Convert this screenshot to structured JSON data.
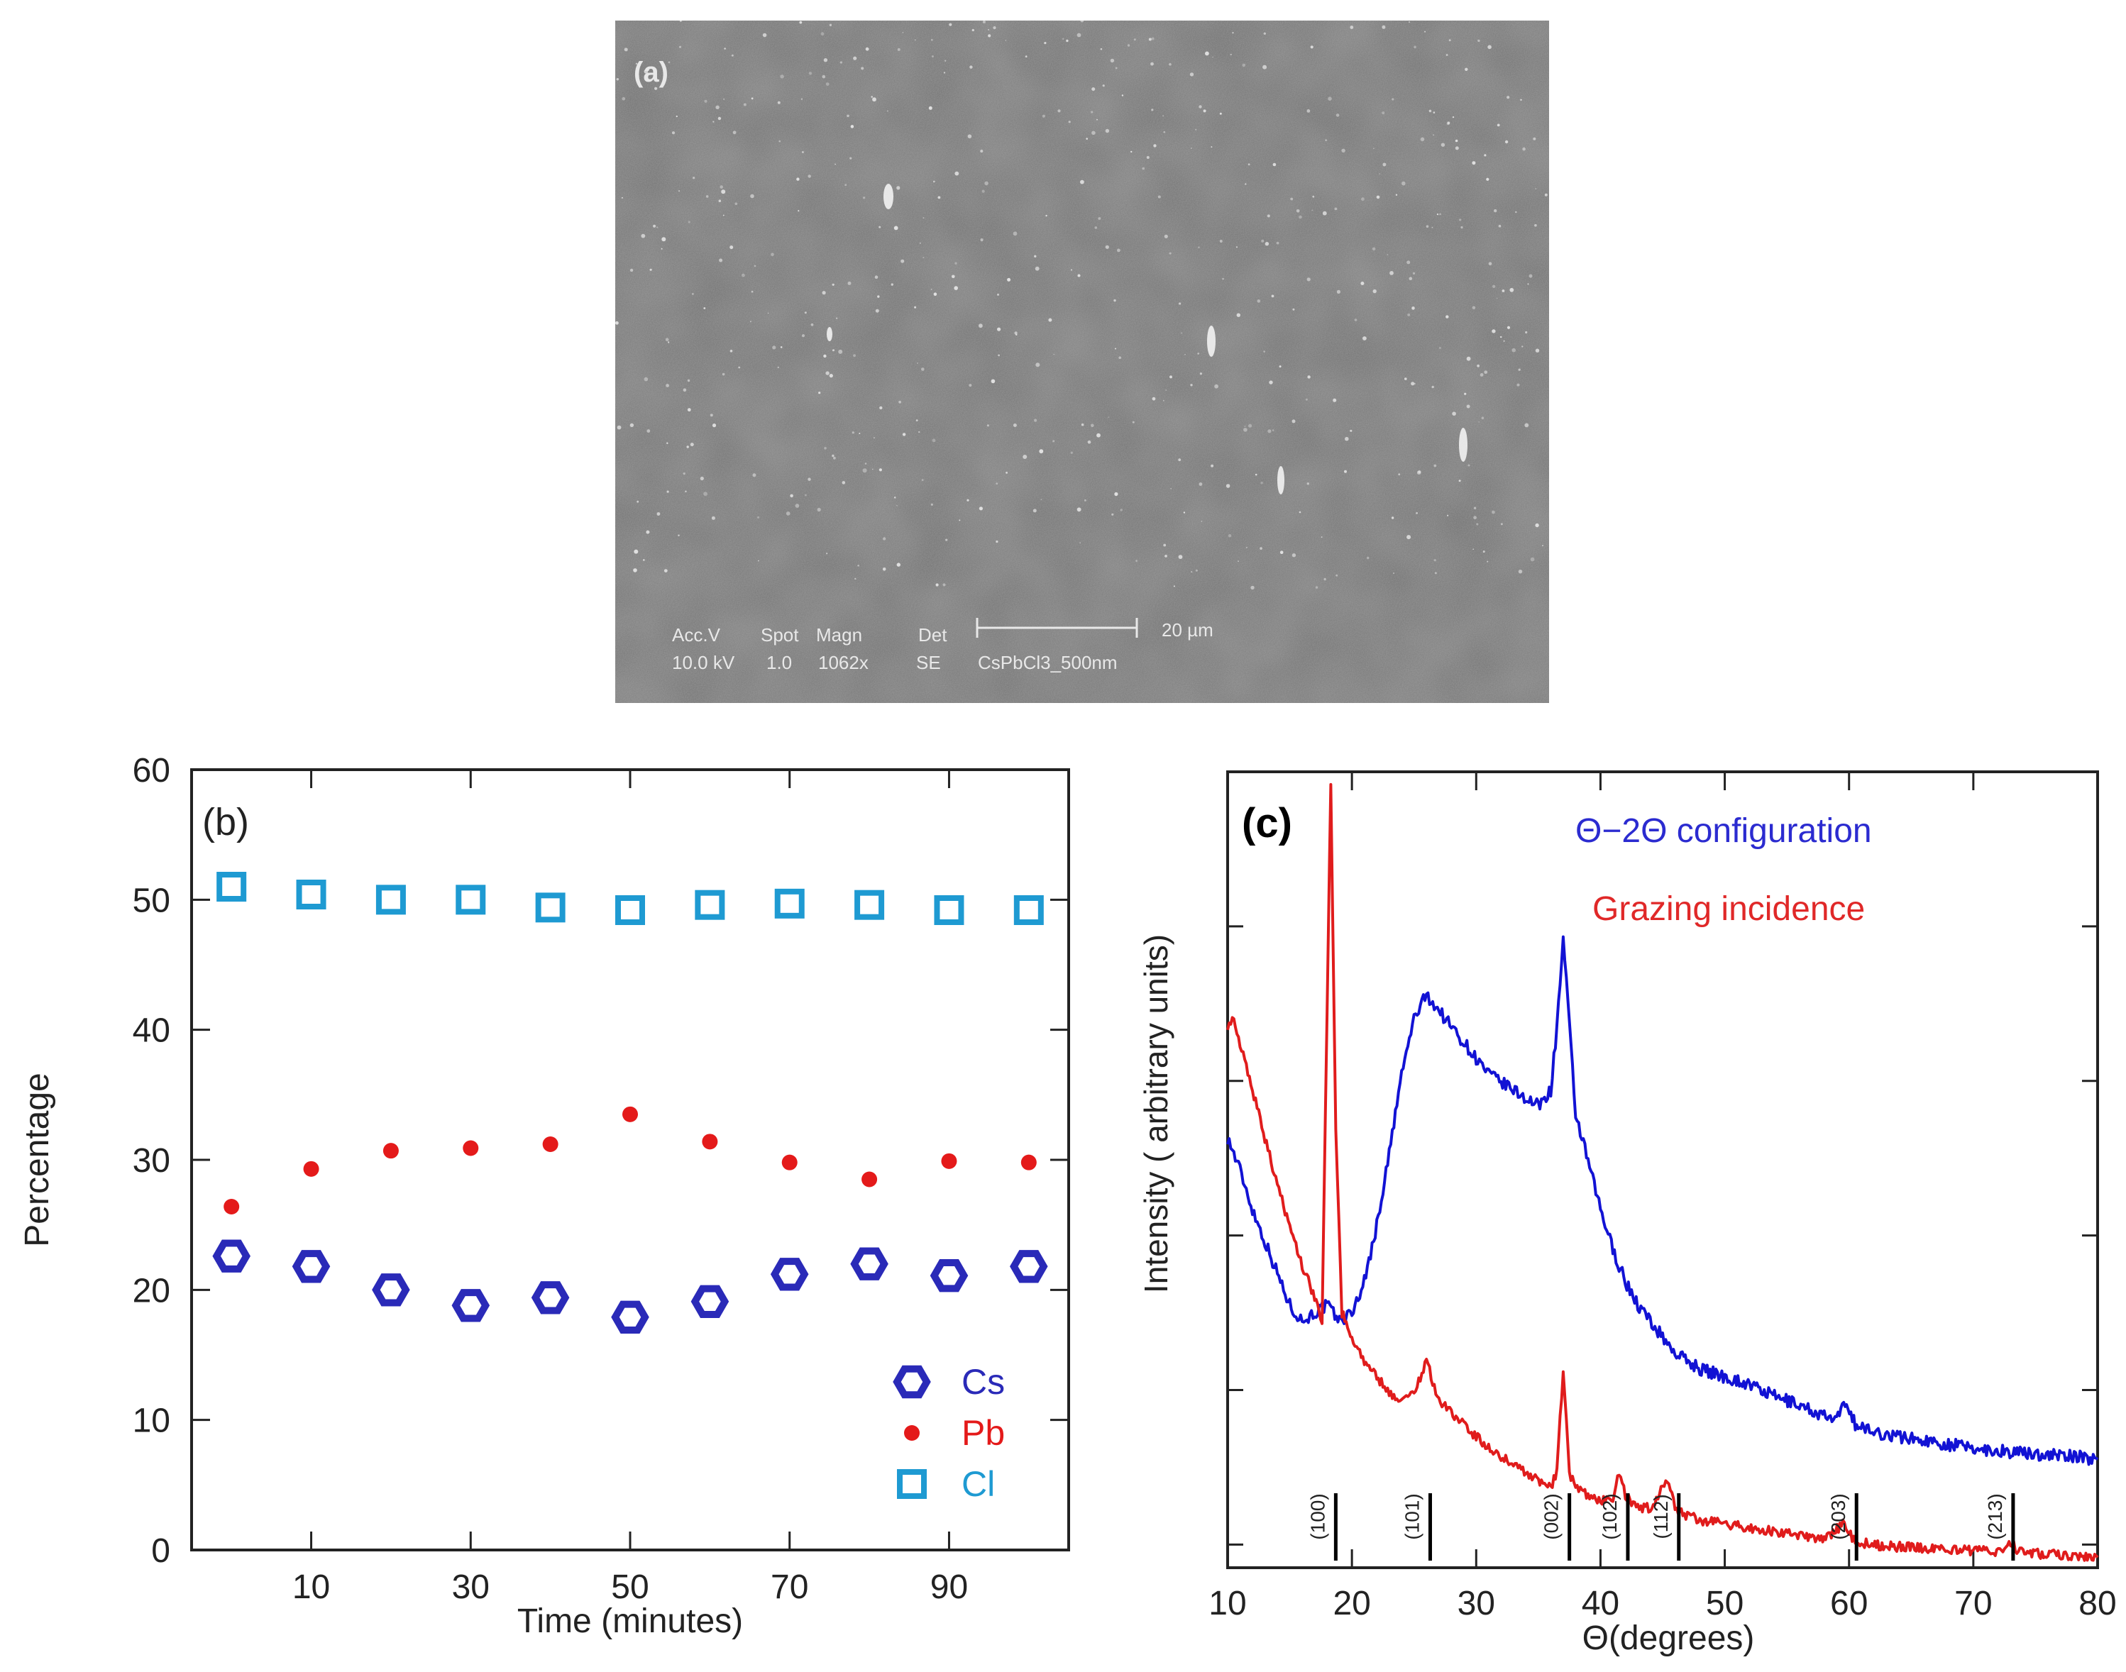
{
  "panel_a": {
    "label": "(a)",
    "info_header": [
      "Acc.V",
      "Spot",
      "Magn",
      "Det"
    ],
    "info_values": [
      "10.0 kV",
      "1.0",
      "1062x",
      "SE",
      "CsPbCl3_500nm"
    ],
    "scale_label": "20 µm"
  },
  "chart_data": [
    {
      "type": "scatter",
      "panel_label": "(b)",
      "xlabel": "Time (minutes)",
      "ylabel": "Percentage",
      "xlim": [
        -5,
        105
      ],
      "ylim": [
        0,
        60
      ],
      "xticks": [
        10,
        30,
        50,
        70,
        90
      ],
      "yticks": [
        0,
        10,
        20,
        30,
        40,
        50,
        60
      ],
      "legend_position": "bottom-right",
      "series": [
        {
          "name": "Cs",
          "marker": "hexagon",
          "color": "#2a2ab8",
          "x": [
            0,
            10,
            20,
            30,
            40,
            50,
            60,
            70,
            80,
            90,
            100
          ],
          "y": [
            22.6,
            21.8,
            20.0,
            18.8,
            19.4,
            17.9,
            19.1,
            21.2,
            22.0,
            21.1,
            21.8
          ]
        },
        {
          "name": "Pb",
          "marker": "dot",
          "color": "#e41a1a",
          "x": [
            0,
            10,
            20,
            30,
            40,
            50,
            60,
            70,
            80,
            90,
            100
          ],
          "y": [
            26.4,
            29.3,
            30.7,
            30.9,
            31.2,
            33.5,
            31.4,
            29.8,
            28.5,
            29.9,
            29.8
          ]
        },
        {
          "name": "Cl",
          "marker": "square",
          "color": "#1e9ad2",
          "x": [
            0,
            10,
            20,
            30,
            40,
            50,
            60,
            70,
            80,
            90,
            100
          ],
          "y": [
            51.0,
            50.4,
            50.0,
            50.0,
            49.4,
            49.2,
            49.6,
            49.7,
            49.6,
            49.2,
            49.2
          ]
        }
      ]
    },
    {
      "type": "line",
      "panel_label": "(c)",
      "xlabel": "Θ(degrees)",
      "ylabel": "Intensity ( arbitrary units)",
      "xlim": [
        10,
        80
      ],
      "ylim": [
        0,
        100
      ],
      "xticks": [
        10,
        20,
        30,
        40,
        50,
        60,
        70,
        80
      ],
      "y_tick_labels_shown": false,
      "annotations": [
        {
          "text": "Θ−2Θ configuration",
          "color": "#2b2bd0"
        },
        {
          "text": "Grazing incidence",
          "color": "#e02828"
        }
      ],
      "reference_peaks": [
        {
          "label": "(100)",
          "x": 18.7
        },
        {
          "label": "(101)",
          "x": 26.3
        },
        {
          "label": "(002)",
          "x": 37.5
        },
        {
          "label": "(102)",
          "x": 42.2
        },
        {
          "label": "(112)",
          "x": 46.3
        },
        {
          "label": "(203)",
          "x": 60.6
        },
        {
          "label": "(213)",
          "x": 73.2
        }
      ],
      "series": [
        {
          "name": "Θ−2Θ configuration",
          "color": "#1212d4",
          "x": [
            10,
            11,
            12,
            13,
            14,
            15,
            16,
            17,
            18,
            19,
            20,
            21,
            22,
            23,
            24,
            25,
            26,
            27,
            28,
            29,
            30,
            31,
            32,
            33,
            34,
            35,
            36,
            36.5,
            37,
            37.5,
            38,
            39,
            40,
            41,
            42,
            43,
            44,
            45,
            46,
            48,
            50,
            52,
            54,
            56,
            58,
            59,
            59.8,
            60.5,
            62,
            64,
            66,
            68,
            70,
            72,
            74,
            76,
            78,
            80
          ],
          "y": [
            54,
            50,
            45,
            41,
            37,
            33,
            31,
            32,
            33,
            31,
            32,
            36,
            43,
            52,
            62,
            69,
            72,
            70,
            68,
            66,
            64,
            62,
            61,
            60,
            59,
            58,
            60,
            68,
            79,
            68,
            57,
            51,
            45,
            40,
            36,
            33,
            31,
            29,
            27,
            25,
            24,
            23,
            21.5,
            20.5,
            19,
            18.5,
            21,
            18,
            17,
            16.5,
            16,
            15.5,
            15,
            14.7,
            14.4,
            14.2,
            14.0,
            13.6
          ]
        },
        {
          "name": "Grazing incidence",
          "color": "#e01c1c",
          "x": [
            10,
            10.5,
            11,
            12,
            13,
            14,
            15,
            16,
            17,
            17.6,
            18,
            18.3,
            18.7,
            19.2,
            20,
            21,
            22,
            23,
            24,
            25,
            26,
            27,
            28,
            29,
            30,
            31,
            32,
            33,
            34,
            35,
            36,
            36.5,
            37,
            37.5,
            38,
            39,
            40,
            41,
            41.5,
            42,
            43,
            44,
            45,
            45.5,
            46,
            47,
            48,
            50,
            52,
            54,
            56,
            58,
            59.5,
            60.5,
            61.5,
            63,
            66,
            68,
            70,
            72,
            73,
            73.5,
            74,
            76,
            78,
            80
          ],
          "y": [
            68,
            69,
            66,
            60,
            54,
            48,
            43,
            38,
            34,
            31,
            70,
            99,
            55,
            32,
            29,
            26,
            24,
            22,
            21,
            22,
            26,
            21,
            19.5,
            18,
            16.5,
            15,
            14,
            13,
            12,
            11,
            10,
            12,
            25,
            12,
            10,
            9,
            8.5,
            8.5,
            12,
            9,
            7.5,
            7.5,
            10,
            11,
            7.5,
            6.5,
            6,
            5.5,
            5,
            4.5,
            4,
            3.5,
            5.5,
            3.3,
            3,
            2.7,
            2.5,
            2.3,
            2.1,
            2.1,
            3.2,
            2.2,
            1.9,
            1.7,
            1.5,
            1.3
          ]
        }
      ]
    }
  ]
}
